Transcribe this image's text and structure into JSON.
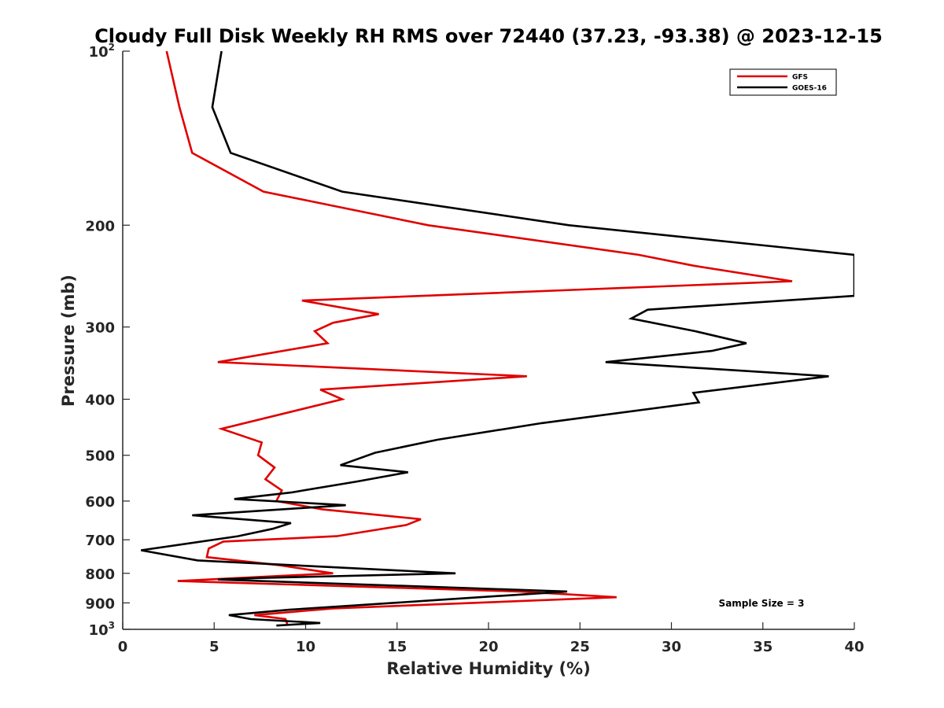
{
  "chart_data": {
    "type": "line",
    "title": "Cloudy Full Disk Weekly RH RMS over 72440 (37.23, -93.38) @ 2023-12-15",
    "xlabel": "Relative Humidity (%)",
    "ylabel": "Pressure (mb)",
    "xlim": [
      0,
      40
    ],
    "ylim": [
      100,
      1000
    ],
    "yscale": "log",
    "y_reversed": true,
    "grid": false,
    "legend_position": "top-right",
    "x_ticks": [
      "0",
      "5",
      "10",
      "15",
      "20",
      "25",
      "30",
      "35",
      "40"
    ],
    "y_ticks": [
      {
        "value": 100,
        "base": "10",
        "exp": "2"
      },
      {
        "value": 200,
        "label": "200"
      },
      {
        "value": 300,
        "label": "300"
      },
      {
        "value": 400,
        "label": "400"
      },
      {
        "value": 500,
        "label": "500"
      },
      {
        "value": 600,
        "label": "600"
      },
      {
        "value": 700,
        "label": "700"
      },
      {
        "value": 800,
        "label": "800"
      },
      {
        "value": 900,
        "label": "900"
      },
      {
        "value": 1000,
        "base": "10",
        "exp": "3"
      }
    ],
    "series": [
      {
        "name": "GFS",
        "color": "#e00000",
        "points": [
          [
            2.4,
            100
          ],
          [
            3.1,
            125
          ],
          [
            3.8,
            150
          ],
          [
            7.7,
            175
          ],
          [
            16.7,
            200
          ],
          [
            28.2,
            225
          ],
          [
            31.2,
            235
          ],
          [
            36.6,
            250
          ],
          [
            9.8,
            270
          ],
          [
            14.0,
            285
          ],
          [
            11.5,
            295
          ],
          [
            10.5,
            305
          ],
          [
            11.2,
            320
          ],
          [
            5.2,
            345
          ],
          [
            22.1,
            365
          ],
          [
            10.8,
            385
          ],
          [
            12.0,
            400
          ],
          [
            5.4,
            450
          ],
          [
            7.6,
            475
          ],
          [
            7.4,
            500
          ],
          [
            8.3,
            525
          ],
          [
            7.8,
            550
          ],
          [
            8.7,
            575
          ],
          [
            8.4,
            600
          ],
          [
            10.9,
            620
          ],
          [
            16.3,
            645
          ],
          [
            15.5,
            660
          ],
          [
            11.7,
            690
          ],
          [
            5.5,
            705
          ],
          [
            4.7,
            725
          ],
          [
            4.6,
            750
          ],
          [
            8.6,
            775
          ],
          [
            11.5,
            800
          ],
          [
            3.0,
            825
          ],
          [
            21.7,
            860
          ],
          [
            27.0,
            880
          ],
          [
            11.5,
            920
          ],
          [
            7.2,
            945
          ],
          [
            8.9,
            960
          ],
          [
            9.0,
            980
          ]
        ]
      },
      {
        "name": "GOES-16",
        "color": "#000000",
        "points": [
          [
            5.4,
            100
          ],
          [
            4.9,
            125
          ],
          [
            5.9,
            150
          ],
          [
            12.0,
            175
          ],
          [
            24.4,
            200
          ],
          [
            40.0,
            225
          ],
          [
            40.0,
            265
          ],
          [
            28.7,
            280
          ],
          [
            27.8,
            290
          ],
          [
            31.3,
            305
          ],
          [
            34.1,
            320
          ],
          [
            32.2,
            330
          ],
          [
            26.4,
            345
          ],
          [
            38.6,
            365
          ],
          [
            31.2,
            390
          ],
          [
            31.5,
            405
          ],
          [
            22.9,
            440
          ],
          [
            17.2,
            470
          ],
          [
            13.8,
            495
          ],
          [
            11.9,
            520
          ],
          [
            15.6,
            535
          ],
          [
            12.8,
            555
          ],
          [
            9.2,
            580
          ],
          [
            6.1,
            595
          ],
          [
            12.2,
            610
          ],
          [
            3.8,
            635
          ],
          [
            9.2,
            655
          ],
          [
            8.2,
            670
          ],
          [
            6.3,
            690
          ],
          [
            1.0,
            730
          ],
          [
            4.1,
            760
          ],
          [
            18.2,
            800
          ],
          [
            7.5,
            815
          ],
          [
            5.2,
            820
          ],
          [
            24.3,
            860
          ],
          [
            9.1,
            925
          ],
          [
            5.8,
            945
          ],
          [
            7.0,
            960
          ],
          [
            10.8,
            975
          ],
          [
            8.4,
            985
          ]
        ]
      }
    ],
    "annotation": "Sample Size = 3"
  }
}
